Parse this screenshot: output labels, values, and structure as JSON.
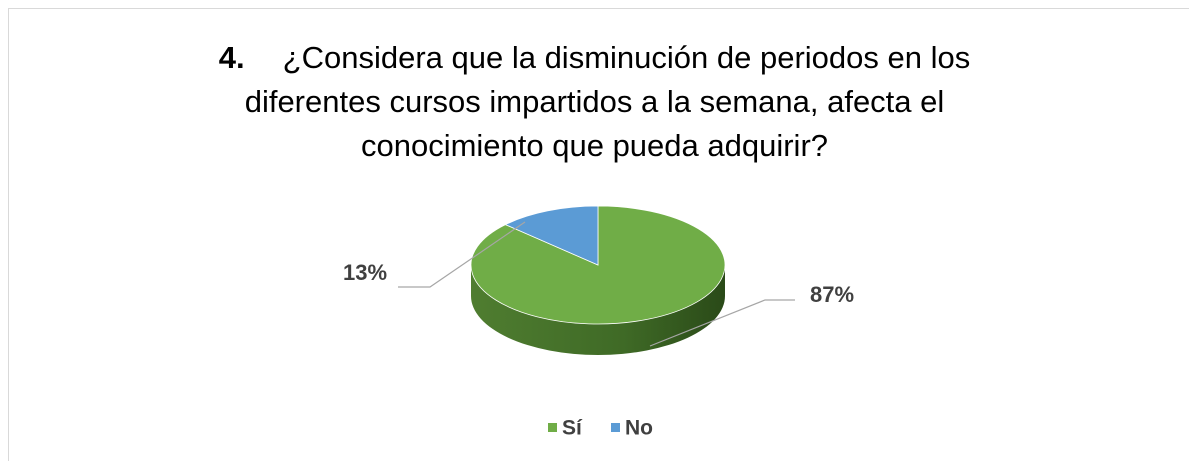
{
  "chart_data": {
    "type": "pie3d",
    "title": {
      "number": "4.",
      "text": "¿Considera que la disminución de periodos en los diferentes cursos impartidos a la semana, afecta el conocimiento que pueda adquirir?"
    },
    "categories": [
      "Sí",
      "No"
    ],
    "values": [
      87,
      13
    ],
    "value_labels": [
      "87%",
      "13%"
    ],
    "colors": [
      "#70ad47",
      "#5b9bd5"
    ],
    "legend": "bottom"
  }
}
